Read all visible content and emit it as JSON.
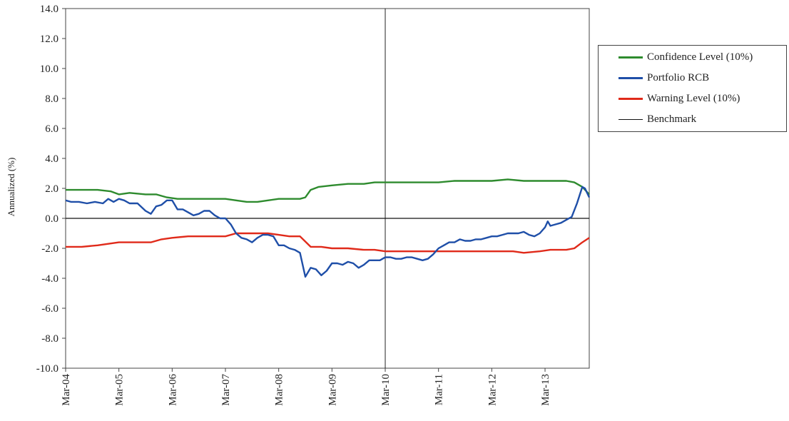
{
  "chart_data": {
    "type": "line",
    "title": "",
    "xlabel": "",
    "ylabel": "Annualized (%)",
    "ylim": [
      -10,
      14
    ],
    "yticks": [
      "14.0",
      "12.0",
      "10.0",
      "8.0",
      "6.0",
      "4.0",
      "2.0",
      "0.0",
      "-2.0",
      "-4.0",
      "-6.0",
      "-8.0",
      "-10.0"
    ],
    "xlim": [
      2004.0,
      2013.83
    ],
    "xticks": [
      {
        "x": 2004.0,
        "label": "Mar-04"
      },
      {
        "x": 2005.0,
        "label": "Mar-05"
      },
      {
        "x": 2006.0,
        "label": "Mar-06"
      },
      {
        "x": 2007.0,
        "label": "Mar-07"
      },
      {
        "x": 2008.0,
        "label": "Mar-08"
      },
      {
        "x": 2009.0,
        "label": "Mar-09"
      },
      {
        "x": 2010.0,
        "label": "Mar-10"
      },
      {
        "x": 2011.0,
        "label": "Mar-11"
      },
      {
        "x": 2012.0,
        "label": "Mar-12"
      },
      {
        "x": 2013.0,
        "label": "Mar-13"
      }
    ],
    "x_note": "x values expressed in years where 2004.0 = Mar-04",
    "vertical_marker_x": 2010.0,
    "legend_position": "right",
    "grid": false,
    "series": [
      {
        "name": "Confidence Level (10%)",
        "color": "#2e8b2e",
        "x": [
          2004.0,
          2004.3,
          2004.6,
          2004.85,
          2005.0,
          2005.2,
          2005.5,
          2005.7,
          2005.9,
          2006.1,
          2006.4,
          2006.6,
          2006.8,
          2007.0,
          2007.2,
          2007.4,
          2007.6,
          2007.8,
          2008.0,
          2008.2,
          2008.4,
          2008.5,
          2008.6,
          2008.75,
          2009.0,
          2009.3,
          2009.6,
          2009.8,
          2010.0,
          2010.5,
          2011.0,
          2011.3,
          2011.5,
          2011.8,
          2012.0,
          2012.3,
          2012.6,
          2012.9,
          2013.2,
          2013.4,
          2013.55,
          2013.7,
          2013.83
        ],
        "y": [
          1.9,
          1.9,
          1.9,
          1.8,
          1.6,
          1.7,
          1.6,
          1.6,
          1.4,
          1.3,
          1.3,
          1.3,
          1.3,
          1.3,
          1.2,
          1.1,
          1.1,
          1.2,
          1.3,
          1.3,
          1.3,
          1.4,
          1.9,
          2.1,
          2.2,
          2.3,
          2.3,
          2.4,
          2.4,
          2.4,
          2.4,
          2.5,
          2.5,
          2.5,
          2.5,
          2.6,
          2.5,
          2.5,
          2.5,
          2.5,
          2.4,
          2.1,
          1.6
        ]
      },
      {
        "name": "Portfolio RCB",
        "color": "#1f4fa8",
        "x": [
          2004.0,
          2004.1,
          2004.25,
          2004.4,
          2004.55,
          2004.7,
          2004.8,
          2004.9,
          2005.0,
          2005.1,
          2005.2,
          2005.35,
          2005.5,
          2005.6,
          2005.7,
          2005.8,
          2005.9,
          2006.0,
          2006.1,
          2006.2,
          2006.3,
          2006.4,
          2006.5,
          2006.6,
          2006.7,
          2006.8,
          2006.9,
          2007.0,
          2007.1,
          2007.2,
          2007.3,
          2007.4,
          2007.5,
          2007.6,
          2007.7,
          2007.8,
          2007.9,
          2008.0,
          2008.1,
          2008.2,
          2008.3,
          2008.4,
          2008.5,
          2008.6,
          2008.7,
          2008.8,
          2008.9,
          2009.0,
          2009.1,
          2009.2,
          2009.3,
          2009.4,
          2009.5,
          2009.6,
          2009.7,
          2009.8,
          2009.9,
          2010.0,
          2010.1,
          2010.2,
          2010.3,
          2010.4,
          2010.5,
          2010.6,
          2010.7,
          2010.8,
          2010.9,
          2011.0,
          2011.1,
          2011.2,
          2011.3,
          2011.4,
          2011.5,
          2011.6,
          2011.7,
          2011.8,
          2011.9,
          2012.0,
          2012.1,
          2012.2,
          2012.3,
          2012.4,
          2012.5,
          2012.6,
          2012.7,
          2012.8,
          2012.9,
          2013.0,
          2013.05,
          2013.1,
          2013.2,
          2013.3,
          2013.4,
          2013.5,
          2013.6,
          2013.7,
          2013.75,
          2013.83
        ],
        "y": [
          1.2,
          1.1,
          1.1,
          1.0,
          1.1,
          1.0,
          1.3,
          1.1,
          1.3,
          1.2,
          1.0,
          1.0,
          0.5,
          0.3,
          0.8,
          0.9,
          1.2,
          1.2,
          0.6,
          0.6,
          0.4,
          0.2,
          0.3,
          0.5,
          0.5,
          0.2,
          0.0,
          0.0,
          -0.4,
          -1.0,
          -1.3,
          -1.4,
          -1.6,
          -1.3,
          -1.1,
          -1.1,
          -1.2,
          -1.8,
          -1.8,
          -2.0,
          -2.1,
          -2.3,
          -3.9,
          -3.3,
          -3.4,
          -3.8,
          -3.5,
          -3.0,
          -3.0,
          -3.1,
          -2.9,
          -3.0,
          -3.3,
          -3.1,
          -2.8,
          -2.8,
          -2.8,
          -2.6,
          -2.6,
          -2.7,
          -2.7,
          -2.6,
          -2.6,
          -2.7,
          -2.8,
          -2.7,
          -2.4,
          -2.0,
          -1.8,
          -1.6,
          -1.6,
          -1.4,
          -1.5,
          -1.5,
          -1.4,
          -1.4,
          -1.3,
          -1.2,
          -1.2,
          -1.1,
          -1.0,
          -1.0,
          -1.0,
          -0.9,
          -1.1,
          -1.2,
          -1.0,
          -0.6,
          -0.2,
          -0.5,
          -0.4,
          -0.3,
          -0.1,
          0.1,
          1.0,
          2.1,
          2.0,
          1.4
        ]
      },
      {
        "name": "Warning Level (10%)",
        "color": "#e02a1a",
        "x": [
          2004.0,
          2004.3,
          2004.6,
          2004.8,
          2005.0,
          2005.3,
          2005.6,
          2005.8,
          2006.0,
          2006.3,
          2006.6,
          2006.8,
          2007.0,
          2007.2,
          2007.4,
          2007.6,
          2007.8,
          2008.0,
          2008.2,
          2008.4,
          2008.6,
          2008.8,
          2009.0,
          2009.3,
          2009.6,
          2009.8,
          2010.0,
          2010.5,
          2011.0,
          2011.5,
          2012.0,
          2012.4,
          2012.6,
          2012.9,
          2013.1,
          2013.4,
          2013.55,
          2013.7,
          2013.83
        ],
        "y": [
          -1.9,
          -1.9,
          -1.8,
          -1.7,
          -1.6,
          -1.6,
          -1.6,
          -1.4,
          -1.3,
          -1.2,
          -1.2,
          -1.2,
          -1.2,
          -1.0,
          -1.0,
          -1.0,
          -1.0,
          -1.1,
          -1.2,
          -1.2,
          -1.9,
          -1.9,
          -2.0,
          -2.0,
          -2.1,
          -2.1,
          -2.2,
          -2.2,
          -2.2,
          -2.2,
          -2.2,
          -2.2,
          -2.3,
          -2.2,
          -2.1,
          -2.1,
          -2.0,
          -1.6,
          -1.3
        ]
      },
      {
        "name": "Benchmark",
        "color": "#111111",
        "x": [
          2004.0,
          2013.83
        ],
        "y": [
          0.0,
          0.0
        ]
      }
    ]
  }
}
